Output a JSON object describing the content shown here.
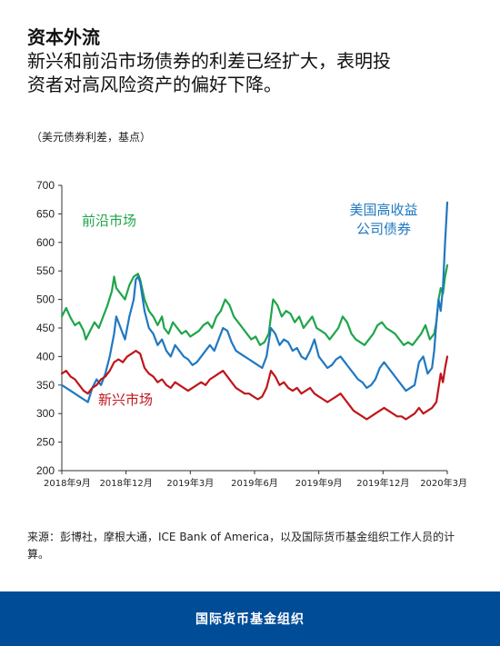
{
  "title": "资本外流",
  "subtitle_line1": "新兴和前沿市场债券的利差已经扩大，表明投",
  "subtitle_line2": "资者对高风险资产的偏好下降。",
  "unit_note": "（美元债券利差，基点）",
  "source_note": "来源：彭博社，摩根大通，ICE Bank of America，以及国际货币基金组织工作人员的计算。",
  "footer": "国际货币基金组织",
  "colors": {
    "frontier": "#1fa54a",
    "high_yield": "#1f78c1",
    "emerging": "#c0151b",
    "footer_bg": "#004c97"
  },
  "chart_data": {
    "type": "line",
    "ylim": [
      200,
      700
    ],
    "yticks": [
      "200",
      "250",
      "300",
      "350",
      "400",
      "450",
      "500",
      "550",
      "600",
      "650",
      "700"
    ],
    "xticks": [
      "2018年9月",
      "2018年12月",
      "2019年3月",
      "2019年6月",
      "2019年9月",
      "2019年12月",
      "2020年3月"
    ],
    "grid": false,
    "series": [
      {
        "name": "前沿市场",
        "label_lines": [
          "前沿市场"
        ],
        "color": "#1fa54a",
        "points": [
          [
            0,
            470
          ],
          [
            2,
            485
          ],
          [
            4,
            468
          ],
          [
            6,
            455
          ],
          [
            8,
            460
          ],
          [
            10,
            445
          ],
          [
            11,
            430
          ],
          [
            13,
            445
          ],
          [
            15,
            460
          ],
          [
            17,
            450
          ],
          [
            19,
            470
          ],
          [
            21,
            490
          ],
          [
            23,
            515
          ],
          [
            24,
            540
          ],
          [
            25,
            520
          ],
          [
            27,
            510
          ],
          [
            29,
            500
          ],
          [
            31,
            525
          ],
          [
            33,
            540
          ],
          [
            35,
            545
          ],
          [
            36,
            535
          ],
          [
            38,
            500
          ],
          [
            40,
            480
          ],
          [
            42,
            470
          ],
          [
            44,
            455
          ],
          [
            46,
            470
          ],
          [
            47,
            450
          ],
          [
            49,
            440
          ],
          [
            51,
            460
          ],
          [
            53,
            450
          ],
          [
            55,
            440
          ],
          [
            57,
            445
          ],
          [
            59,
            435
          ],
          [
            61,
            440
          ],
          [
            63,
            445
          ],
          [
            65,
            455
          ],
          [
            67,
            460
          ],
          [
            69,
            450
          ],
          [
            71,
            470
          ],
          [
            73,
            480
          ],
          [
            75,
            500
          ],
          [
            77,
            490
          ],
          [
            79,
            470
          ],
          [
            81,
            460
          ],
          [
            83,
            450
          ],
          [
            85,
            440
          ],
          [
            87,
            430
          ],
          [
            89,
            435
          ],
          [
            91,
            420
          ],
          [
            93,
            425
          ],
          [
            95,
            440
          ],
          [
            97,
            500
          ],
          [
            99,
            490
          ],
          [
            101,
            470
          ],
          [
            103,
            480
          ],
          [
            105,
            475
          ],
          [
            107,
            460
          ],
          [
            109,
            470
          ],
          [
            111,
            450
          ],
          [
            113,
            460
          ],
          [
            115,
            470
          ],
          [
            117,
            450
          ],
          [
            119,
            445
          ],
          [
            121,
            440
          ],
          [
            123,
            430
          ],
          [
            125,
            440
          ],
          [
            127,
            450
          ],
          [
            129,
            470
          ],
          [
            131,
            460
          ],
          [
            133,
            440
          ],
          [
            135,
            430
          ],
          [
            137,
            425
          ],
          [
            139,
            420
          ],
          [
            141,
            430
          ],
          [
            143,
            440
          ],
          [
            145,
            455
          ],
          [
            147,
            460
          ],
          [
            149,
            450
          ],
          [
            151,
            445
          ],
          [
            153,
            440
          ],
          [
            155,
            430
          ],
          [
            157,
            420
          ],
          [
            159,
            425
          ],
          [
            161,
            420
          ],
          [
            163,
            430
          ],
          [
            165,
            440
          ],
          [
            167,
            455
          ],
          [
            169,
            430
          ],
          [
            171,
            440
          ],
          [
            172,
            460
          ],
          [
            173,
            500
          ],
          [
            174,
            520
          ],
          [
            175,
            510
          ],
          [
            176,
            540
          ],
          [
            177,
            560
          ]
        ]
      },
      {
        "name": "美国高收益公司债券",
        "label_lines": [
          "美国高收益",
          "公司债券"
        ],
        "color": "#1f78c1",
        "points": [
          [
            0,
            350
          ],
          [
            2,
            345
          ],
          [
            4,
            340
          ],
          [
            6,
            335
          ],
          [
            8,
            330
          ],
          [
            10,
            325
          ],
          [
            12,
            320
          ],
          [
            14,
            345
          ],
          [
            16,
            360
          ],
          [
            18,
            350
          ],
          [
            20,
            370
          ],
          [
            22,
            400
          ],
          [
            24,
            440
          ],
          [
            25,
            470
          ],
          [
            27,
            450
          ],
          [
            29,
            430
          ],
          [
            31,
            470
          ],
          [
            33,
            500
          ],
          [
            34,
            535
          ],
          [
            35,
            540
          ],
          [
            36,
            530
          ],
          [
            38,
            480
          ],
          [
            40,
            450
          ],
          [
            42,
            440
          ],
          [
            44,
            420
          ],
          [
            46,
            430
          ],
          [
            48,
            410
          ],
          [
            50,
            400
          ],
          [
            52,
            420
          ],
          [
            54,
            410
          ],
          [
            56,
            400
          ],
          [
            58,
            395
          ],
          [
            60,
            385
          ],
          [
            62,
            390
          ],
          [
            64,
            400
          ],
          [
            66,
            410
          ],
          [
            68,
            420
          ],
          [
            70,
            410
          ],
          [
            72,
            430
          ],
          [
            74,
            450
          ],
          [
            76,
            445
          ],
          [
            78,
            425
          ],
          [
            80,
            410
          ],
          [
            82,
            405
          ],
          [
            84,
            400
          ],
          [
            86,
            395
          ],
          [
            88,
            390
          ],
          [
            90,
            385
          ],
          [
            92,
            380
          ],
          [
            94,
            400
          ],
          [
            96,
            450
          ],
          [
            98,
            440
          ],
          [
            100,
            420
          ],
          [
            102,
            430
          ],
          [
            104,
            425
          ],
          [
            106,
            410
          ],
          [
            108,
            415
          ],
          [
            110,
            400
          ],
          [
            112,
            395
          ],
          [
            114,
            410
          ],
          [
            116,
            430
          ],
          [
            118,
            400
          ],
          [
            120,
            390
          ],
          [
            122,
            380
          ],
          [
            124,
            385
          ],
          [
            126,
            395
          ],
          [
            128,
            400
          ],
          [
            130,
            390
          ],
          [
            132,
            380
          ],
          [
            134,
            370
          ],
          [
            136,
            360
          ],
          [
            138,
            355
          ],
          [
            140,
            345
          ],
          [
            142,
            350
          ],
          [
            144,
            360
          ],
          [
            146,
            380
          ],
          [
            148,
            390
          ],
          [
            150,
            380
          ],
          [
            152,
            370
          ],
          [
            154,
            360
          ],
          [
            156,
            350
          ],
          [
            158,
            340
          ],
          [
            160,
            345
          ],
          [
            162,
            350
          ],
          [
            164,
            390
          ],
          [
            166,
            400
          ],
          [
            168,
            370
          ],
          [
            170,
            380
          ],
          [
            171,
            410
          ],
          [
            172,
            460
          ],
          [
            173,
            500
          ],
          [
            174,
            480
          ],
          [
            175,
            520
          ],
          [
            176,
            600
          ],
          [
            177,
            670
          ]
        ]
      },
      {
        "name": "新兴市场",
        "label_lines": [
          "新兴市场"
        ],
        "color": "#c0151b",
        "points": [
          [
            0,
            370
          ],
          [
            2,
            375
          ],
          [
            4,
            365
          ],
          [
            6,
            360
          ],
          [
            8,
            350
          ],
          [
            10,
            340
          ],
          [
            12,
            335
          ],
          [
            14,
            345
          ],
          [
            16,
            350
          ],
          [
            18,
            360
          ],
          [
            20,
            365
          ],
          [
            22,
            375
          ],
          [
            24,
            390
          ],
          [
            26,
            395
          ],
          [
            28,
            390
          ],
          [
            30,
            400
          ],
          [
            32,
            405
          ],
          [
            34,
            410
          ],
          [
            36,
            405
          ],
          [
            38,
            380
          ],
          [
            40,
            370
          ],
          [
            42,
            365
          ],
          [
            44,
            355
          ],
          [
            46,
            360
          ],
          [
            48,
            350
          ],
          [
            50,
            345
          ],
          [
            52,
            355
          ],
          [
            54,
            350
          ],
          [
            56,
            345
          ],
          [
            58,
            340
          ],
          [
            60,
            345
          ],
          [
            62,
            350
          ],
          [
            64,
            355
          ],
          [
            66,
            350
          ],
          [
            68,
            360
          ],
          [
            70,
            365
          ],
          [
            72,
            370
          ],
          [
            74,
            375
          ],
          [
            76,
            365
          ],
          [
            78,
            355
          ],
          [
            80,
            345
          ],
          [
            82,
            340
          ],
          [
            84,
            335
          ],
          [
            86,
            335
          ],
          [
            88,
            330
          ],
          [
            90,
            325
          ],
          [
            92,
            330
          ],
          [
            94,
            345
          ],
          [
            96,
            375
          ],
          [
            98,
            365
          ],
          [
            100,
            350
          ],
          [
            102,
            355
          ],
          [
            104,
            345
          ],
          [
            106,
            340
          ],
          [
            108,
            345
          ],
          [
            110,
            335
          ],
          [
            112,
            340
          ],
          [
            114,
            345
          ],
          [
            116,
            335
          ],
          [
            118,
            330
          ],
          [
            120,
            325
          ],
          [
            122,
            320
          ],
          [
            124,
            325
          ],
          [
            126,
            330
          ],
          [
            128,
            335
          ],
          [
            130,
            325
          ],
          [
            132,
            315
          ],
          [
            134,
            305
          ],
          [
            136,
            300
          ],
          [
            138,
            295
          ],
          [
            140,
            290
          ],
          [
            142,
            295
          ],
          [
            144,
            300
          ],
          [
            146,
            305
          ],
          [
            148,
            310
          ],
          [
            150,
            305
          ],
          [
            152,
            300
          ],
          [
            154,
            295
          ],
          [
            156,
            295
          ],
          [
            158,
            290
          ],
          [
            160,
            295
          ],
          [
            162,
            300
          ],
          [
            164,
            310
          ],
          [
            166,
            300
          ],
          [
            168,
            305
          ],
          [
            170,
            310
          ],
          [
            172,
            320
          ],
          [
            173,
            345
          ],
          [
            174,
            370
          ],
          [
            175,
            355
          ],
          [
            176,
            380
          ],
          [
            177,
            400
          ]
        ]
      }
    ]
  }
}
